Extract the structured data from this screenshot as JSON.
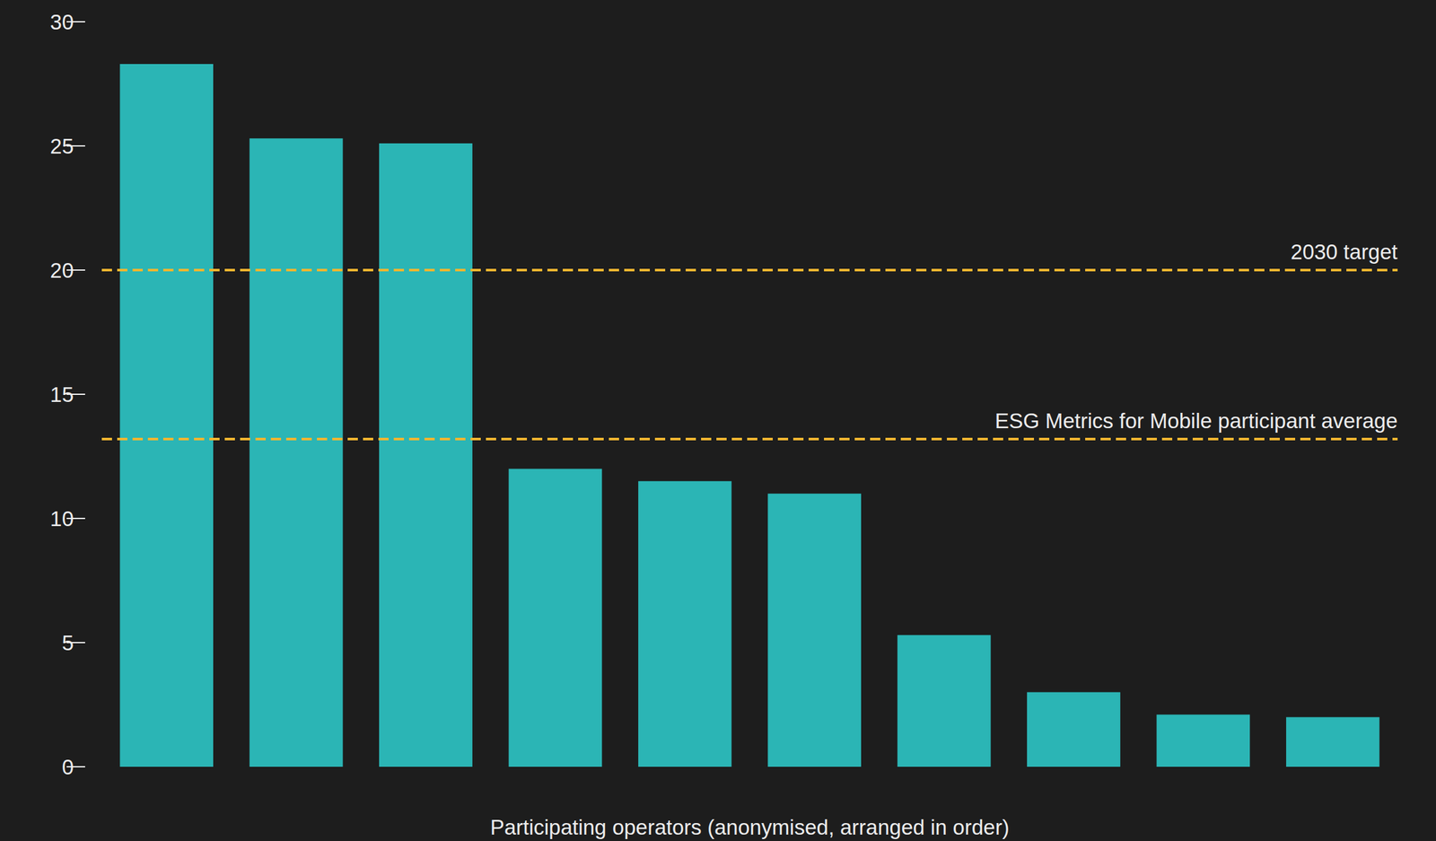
{
  "chart_data": {
    "type": "bar",
    "x_label": "Participating operators (anonymised, arranged in order)",
    "categories": [
      null,
      null,
      null,
      null,
      null,
      null,
      null,
      null,
      null,
      null
    ],
    "values": [
      28.3,
      25.3,
      25.1,
      12.0,
      11.5,
      11.0,
      5.3,
      3.0,
      2.1,
      2.0
    ],
    "color": "#2bb5b5",
    "ylim": [
      0,
      30
    ],
    "yticks": [
      0,
      5,
      10,
      15,
      20,
      25,
      30
    ],
    "grid": false,
    "tick_labels": "y",
    "annotations": [
      {
        "text": "2030 target",
        "y": 20,
        "color": "#f2b630",
        "line_style": "dashed"
      },
      {
        "text": "ESG Metrics for Mobile participant average",
        "y": 13.2,
        "color": "#f2b630",
        "line_style": "dashed"
      }
    ]
  }
}
